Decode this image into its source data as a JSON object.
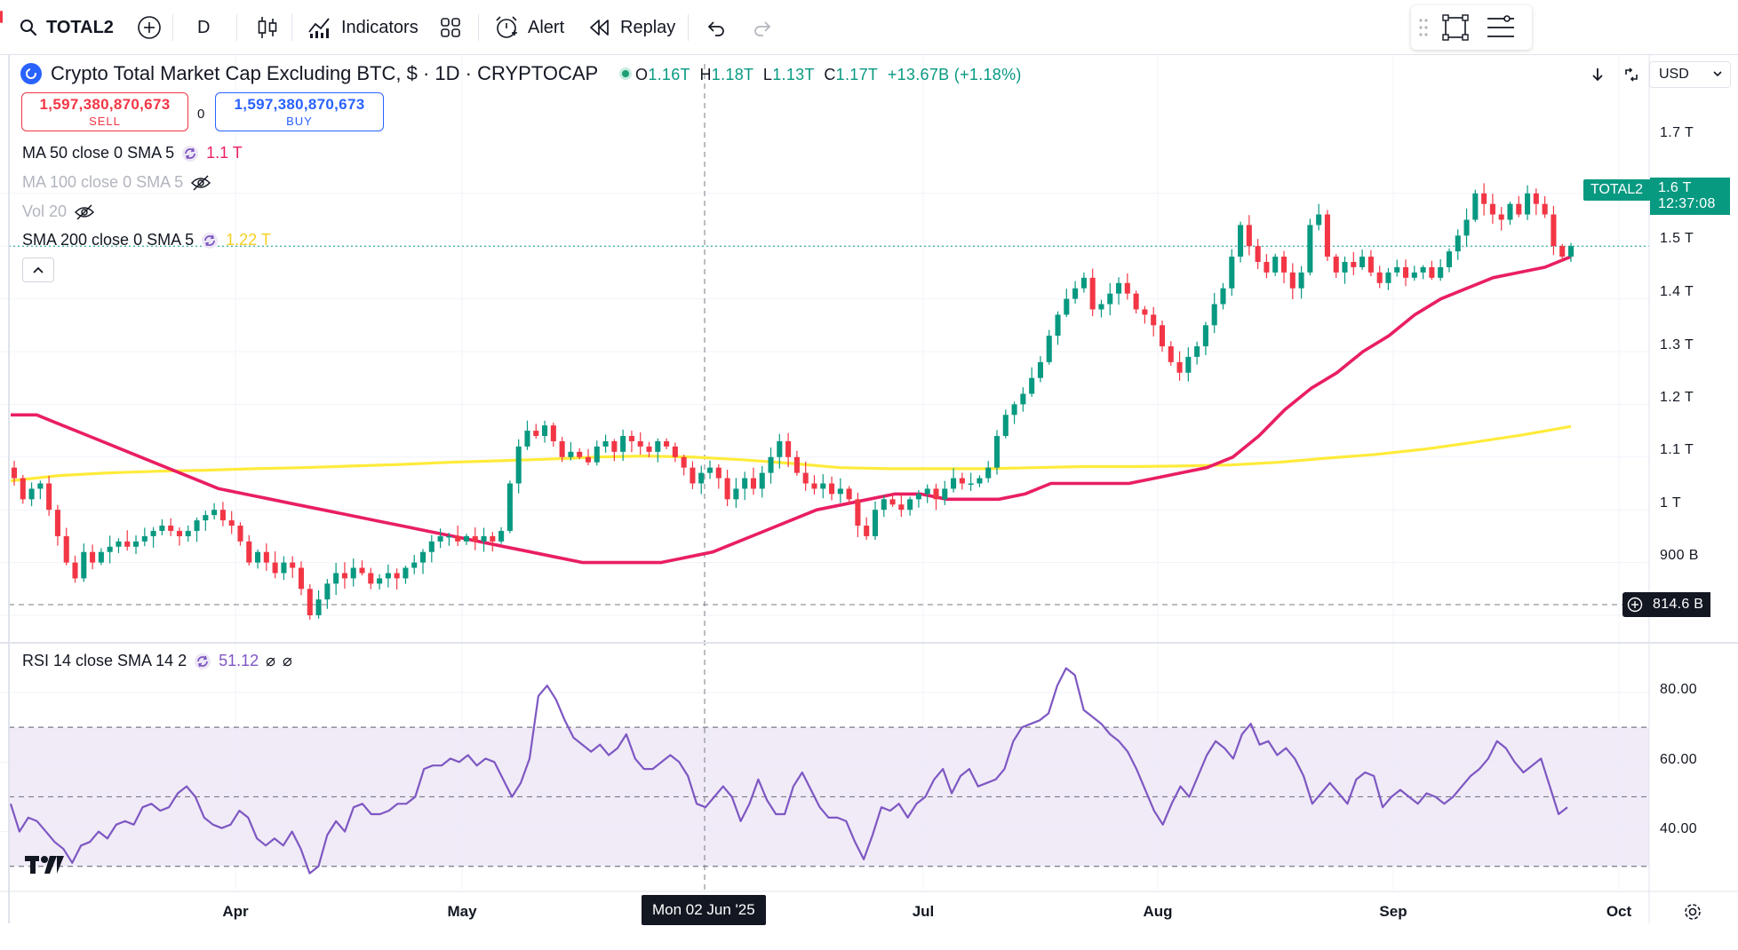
{
  "toolbar": {
    "symbol": "TOTAL2",
    "interval": "D",
    "indicators_label": "Indicators",
    "alert_label": "Alert",
    "replay_label": "Replay"
  },
  "legend": {
    "title": "Crypto Total Market Cap Excluding BTC, $ · 1D · CRYPTOCAP",
    "ohlc": {
      "o_label": "O",
      "o": "1.16T",
      "h_label": "H",
      "h": "1.18T",
      "l_label": "L",
      "l": "1.13T",
      "c_label": "C",
      "c": "1.17T",
      "change": "+13.67B (+1.18%)"
    },
    "sell_value": "1,597,380,870,673",
    "sell_label": "SELL",
    "buy_value": "1,597,380,870,673",
    "buy_label": "BUY",
    "spread": "0",
    "indicators": [
      {
        "label": "MA 50 close 0 SMA 5",
        "value": "1.1 T",
        "color": "#e91e63",
        "visible": true
      },
      {
        "label": "MA 100 close 0 SMA 5",
        "value": "",
        "color": "#b2b5be",
        "visible": false
      },
      {
        "label": "Vol 20",
        "value": "",
        "color": "#b2b5be",
        "visible": false
      },
      {
        "label": "SMA 200 close 0 SMA 5",
        "value": "1.22 T",
        "color": "#ffeb3b",
        "visible": true
      }
    ]
  },
  "rsi_legend": {
    "label": "RSI 14 close SMA 14 2",
    "value": "51.12"
  },
  "price_scale": {
    "currency": "USD",
    "ticks": [
      "1.7 T",
      "1.6 T",
      "1.5 T",
      "1.4 T",
      "1.3 T",
      "1.2 T",
      "1.1 T",
      "1 T",
      "900 B"
    ],
    "last_price_name": "TOTAL2",
    "last_price": "1.6 T",
    "countdown": "12:37:08",
    "crosshair_price": "814.6 B"
  },
  "rsi_scale": {
    "ticks": [
      "80.00",
      "60.00",
      "40.00"
    ]
  },
  "time_axis": {
    "labels": [
      "Apr",
      "May",
      "Jul",
      "Aug",
      "Sep",
      "Oct"
    ],
    "crosshair_date": "Mon 02 Jun '25"
  },
  "colors": {
    "up": "#089981",
    "down": "#f23645",
    "ma50": "#e91e63",
    "sma200": "#ffeb3b",
    "rsi": "#7e57c2",
    "rsi_band": "#ede7f6"
  },
  "chart_data": {
    "type": "candlestick",
    "y_unit": "T",
    "ylim": [
      0.83,
      1.76
    ],
    "closes": [
      1.16,
      1.12,
      1.14,
      1.15,
      1.1,
      1.05,
      1,
      0.97,
      1.02,
      1.0,
      1.02,
      1.03,
      1.04,
      1.03,
      1.04,
      1.05,
      1.06,
      1.07,
      1.06,
      1.05,
      1.06,
      1.08,
      1.09,
      1.1,
      1.08,
      1.07,
      1.04,
      1.0,
      1.02,
      1.0,
      0.98,
      1.0,
      0.99,
      0.95,
      0.9,
      0.93,
      0.96,
      0.98,
      0.97,
      0.99,
      0.98,
      0.96,
      0.97,
      0.98,
      0.97,
      0.99,
      1.0,
      1.02,
      1.04,
      1.05,
      1.05,
      1.04,
      1.05,
      1.04,
      1.05,
      1.04,
      1.06,
      1.15,
      1.22,
      1.25,
      1.24,
      1.26,
      1.23,
      1.2,
      1.21,
      1.2,
      1.19,
      1.22,
      1.23,
      1.21,
      1.24,
      1.23,
      1.22,
      1.21,
      1.23,
      1.22,
      1.2,
      1.18,
      1.15,
      1.17,
      1.18,
      1.16,
      1.12,
      1.14,
      1.16,
      1.14,
      1.17,
      1.2,
      1.23,
      1.2,
      1.17,
      1.15,
      1.14,
      1.15,
      1.13,
      1.14,
      1.12,
      1.07,
      1.05,
      1.1,
      1.12,
      1.11,
      1.1,
      1.12,
      1.13,
      1.14,
      1.12,
      1.14,
      1.16,
      1.15,
      1.15,
      1.16,
      1.18,
      1.24,
      1.28,
      1.3,
      1.32,
      1.35,
      1.38,
      1.43,
      1.47,
      1.5,
      1.52,
      1.54,
      1.48,
      1.49,
      1.51,
      1.53,
      1.51,
      1.48,
      1.47,
      1.45,
      1.41,
      1.38,
      1.36,
      1.39,
      1.41,
      1.45,
      1.49,
      1.52,
      1.58,
      1.64,
      1.6,
      1.57,
      1.55,
      1.58,
      1.55,
      1.52,
      1.55,
      1.64,
      1.66,
      1.58,
      1.55,
      1.57,
      1.56,
      1.58,
      1.55,
      1.53,
      1.55,
      1.56,
      1.54,
      1.55,
      1.56,
      1.54,
      1.56,
      1.59,
      1.62,
      1.65,
      1.7,
      1.68,
      1.66,
      1.65,
      1.68,
      1.66,
      1.7,
      1.68,
      1.66,
      1.6,
      1.58,
      1.6
    ],
    "ma50": [
      1.28,
      1.28,
      1.26,
      1.24,
      1.22,
      1.2,
      1.18,
      1.16,
      1.14,
      1.13,
      1.12,
      1.11,
      1.1,
      1.09,
      1.08,
      1.07,
      1.06,
      1.05,
      1.04,
      1.03,
      1.02,
      1.01,
      1.0,
      1.0,
      1.0,
      1.0,
      1.01,
      1.02,
      1.04,
      1.06,
      1.08,
      1.1,
      1.11,
      1.12,
      1.13,
      1.13,
      1.12,
      1.12,
      1.12,
      1.13,
      1.15,
      1.15,
      1.15,
      1.15,
      1.16,
      1.17,
      1.18,
      1.2,
      1.24,
      1.29,
      1.33,
      1.36,
      1.4,
      1.43,
      1.47,
      1.5,
      1.52,
      1.54,
      1.55,
      1.56,
      1.58
    ],
    "sma200": [
      1.155,
      1.165,
      1.17,
      1.173,
      1.175,
      1.178,
      1.18,
      1.183,
      1.186,
      1.19,
      1.193,
      1.196,
      1.2,
      1.202,
      1.2,
      1.195,
      1.188,
      1.18,
      1.178,
      1.178,
      1.178,
      1.18,
      1.182,
      1.182,
      1.183,
      1.185,
      1.19,
      1.198,
      1.205,
      1.215,
      1.228,
      1.242,
      1.258
    ],
    "rsi": [
      48,
      40,
      44,
      43,
      40,
      37,
      35,
      31,
      36,
      37,
      40,
      38,
      42,
      43,
      42,
      47,
      48,
      46,
      47,
      51,
      53,
      50,
      44,
      42,
      41,
      42,
      46,
      44,
      38,
      36,
      38,
      36,
      40,
      35,
      28,
      30,
      39,
      43,
      40,
      47,
      48,
      45,
      45,
      46,
      48,
      48,
      50,
      58,
      59,
      59,
      61,
      60,
      62,
      59,
      61,
      60,
      55,
      50,
      54,
      61,
      79,
      82,
      78,
      72,
      67,
      65,
      63,
      65,
      62,
      64,
      68,
      61,
      58,
      58,
      60,
      62,
      60,
      56,
      48,
      47,
      50,
      53,
      50,
      43,
      48,
      55,
      49,
      45,
      45,
      53,
      57,
      52,
      47,
      44,
      44,
      43,
      37,
      32,
      39,
      47,
      46,
      48,
      44,
      48,
      50,
      55,
      58,
      51,
      56,
      58,
      53,
      54,
      55,
      58,
      66,
      70,
      71,
      72,
      74,
      82,
      87,
      85,
      75,
      73,
      71,
      68,
      66,
      63,
      58,
      52,
      46,
      42,
      48,
      53,
      50,
      56,
      62,
      66,
      64,
      61,
      68,
      71,
      65,
      66,
      62,
      64,
      61,
      56,
      48,
      51,
      54,
      51,
      48,
      55,
      57,
      56,
      47,
      50,
      52,
      50,
      48,
      51,
      50,
      48,
      50,
      53,
      56,
      58,
      61,
      66,
      64,
      60,
      57,
      59,
      61,
      53,
      45,
      47
    ]
  }
}
